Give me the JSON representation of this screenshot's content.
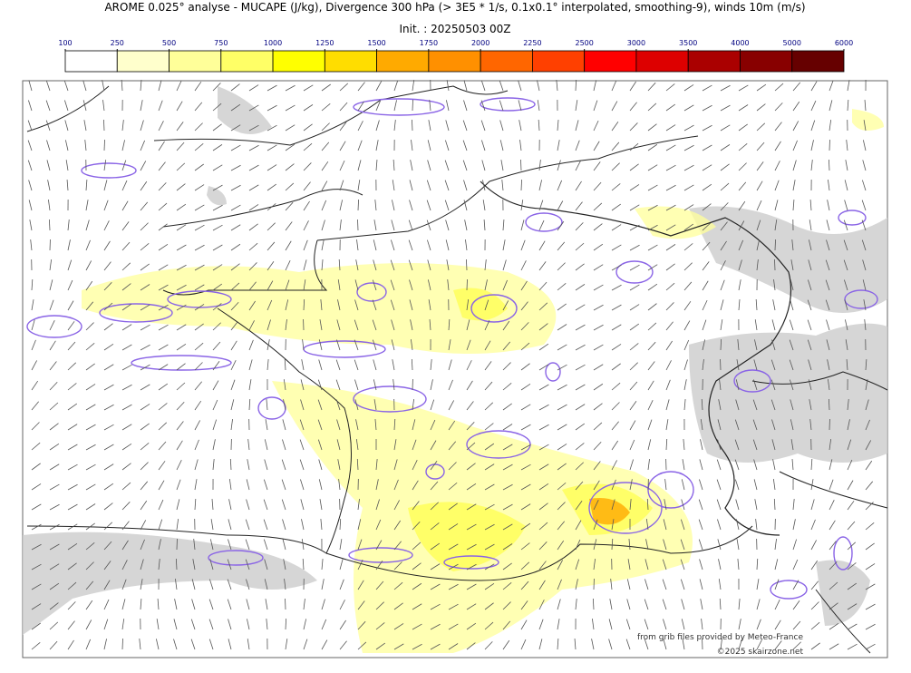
{
  "header": {
    "title": "AROME 0.025° analyse - MUCAPE (J/kg), Divergence 300 hPa (> 3E5 * 1/s, 0.1x0.1° interpolated, smoothing-9), winds 10m (m/s)",
    "init": "Init. : 20250503 00Z"
  },
  "colorbar": {
    "ticks": [
      100,
      250,
      500,
      750,
      1000,
      1250,
      1500,
      1750,
      2000,
      2250,
      2500,
      3000,
      3500,
      4000,
      5000,
      6000
    ],
    "colors": [
      "#ffffff",
      "#ffffcc",
      "#ffff99",
      "#ffff66",
      "#ffff00",
      "#ffdd00",
      "#ffaa00",
      "#ff9000",
      "#ff6600",
      "#ff4000",
      "#ff0000",
      "#dd0000",
      "#aa0000",
      "#880000",
      "#660000"
    ]
  },
  "credits": {
    "source": "from grib files provided by Meteo-France",
    "copyright": "©2025 skairzone.net"
  }
}
